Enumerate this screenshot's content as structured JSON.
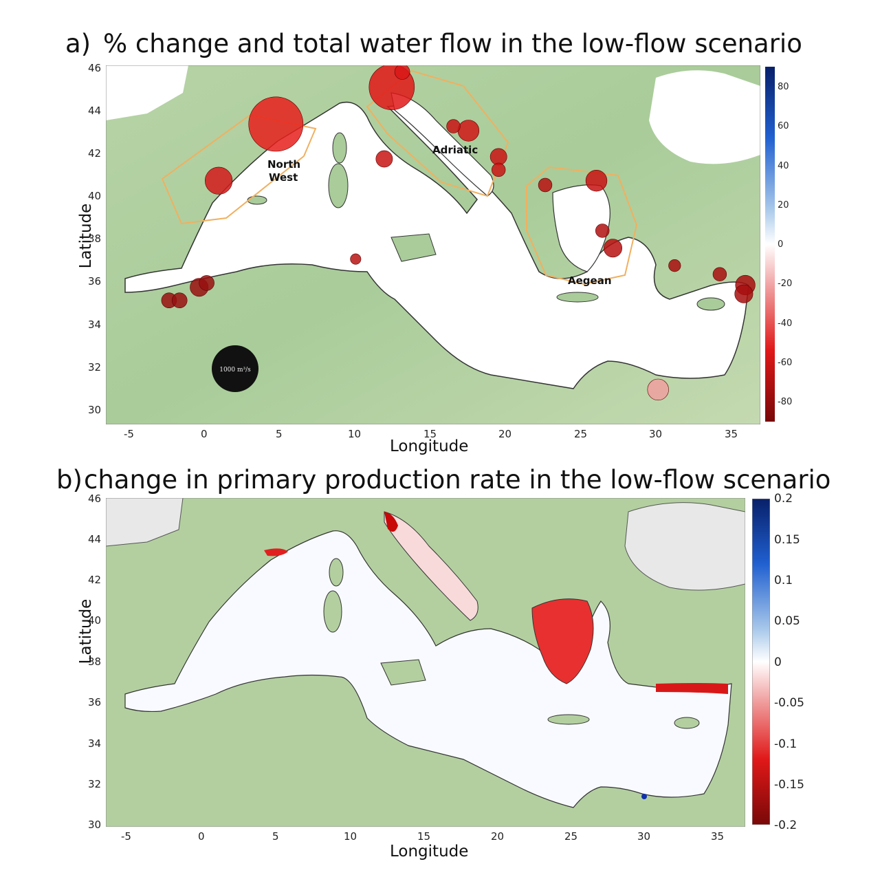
{
  "panel_a": {
    "letter": "a)",
    "title": "% change and total water flow in the low-flow scenario",
    "xlabel": "Longitude",
    "ylabel": "Latitude",
    "xticks": [
      "-5",
      "0",
      "5",
      "10",
      "15",
      "20",
      "25",
      "30",
      "35"
    ],
    "yticks": [
      "46",
      "44",
      "42",
      "40",
      "38",
      "36",
      "34",
      "32",
      "30"
    ],
    "colorbar_ticks": [
      "80",
      "60",
      "40",
      "20",
      "0",
      "-20",
      "-40",
      "-60",
      "-80"
    ],
    "regions": {
      "north_west_line1": "North",
      "north_west_line2": "West",
      "adriatic": "Adriatic",
      "aegean": "Aegean"
    },
    "legend_circle_label": "1000 m³/s"
  },
  "panel_b": {
    "letter": "b)",
    "title": "change in primary production rate in the low-flow scenario",
    "xlabel": "Longitude",
    "ylabel": "Latitude",
    "xticks": [
      "-5",
      "0",
      "5",
      "10",
      "15",
      "20",
      "25",
      "30",
      "35"
    ],
    "yticks": [
      "46",
      "44",
      "42",
      "40",
      "38",
      "36",
      "34",
      "32",
      "30"
    ],
    "colorbar_ticks": [
      "0.2",
      "0.15",
      "0.1",
      "0.05",
      "0",
      "-0.05",
      "-0.1",
      "-0.15",
      "-0.2"
    ]
  },
  "chart_data": [
    {
      "type": "scatter",
      "title": "% change and total water flow in the low-flow scenario",
      "xlabel": "Longitude",
      "ylabel": "Latitude",
      "xlim": [
        -6.5,
        37
      ],
      "ylim": [
        29.5,
        46
      ],
      "colorbar_range": [
        -90,
        90
      ],
      "colormap": "red-white-blue",
      "river_mouths": [
        {
          "lon": 4.8,
          "lat": 43.3,
          "size": 3.6,
          "color": "#e8201c"
        },
        {
          "lon": 12.5,
          "lat": 45.0,
          "size": 3.0,
          "color": "#e01818"
        },
        {
          "lon": 1.0,
          "lat": 40.7,
          "size": 1.8,
          "color": "#d41a1a"
        },
        {
          "lon": 13.2,
          "lat": 45.7,
          "size": 1.0,
          "color": "#d81818"
        },
        {
          "lon": 17.6,
          "lat": 43.0,
          "size": 1.4,
          "color": "#d01616"
        },
        {
          "lon": 19.6,
          "lat": 41.8,
          "size": 1.1,
          "color": "#c81414"
        },
        {
          "lon": 19.6,
          "lat": 41.2,
          "size": 0.9,
          "color": "#c81414"
        },
        {
          "lon": 16.6,
          "lat": 43.2,
          "size": 0.9,
          "color": "#c81414"
        },
        {
          "lon": 12.0,
          "lat": 41.7,
          "size": 1.1,
          "color": "#c81414"
        },
        {
          "lon": 26.1,
          "lat": 40.7,
          "size": 1.4,
          "color": "#c81212"
        },
        {
          "lon": 22.7,
          "lat": 40.5,
          "size": 0.9,
          "color": "#b81010"
        },
        {
          "lon": 26.5,
          "lat": 38.4,
          "size": 0.9,
          "color": "#b01010"
        },
        {
          "lon": 27.2,
          "lat": 37.6,
          "size": 1.2,
          "color": "#b81010"
        },
        {
          "lon": 36.0,
          "lat": 35.9,
          "size": 1.3,
          "color": "#a80e0e"
        },
        {
          "lon": 35.9,
          "lat": 35.5,
          "size": 1.2,
          "color": "#a80e0e"
        },
        {
          "lon": 34.3,
          "lat": 36.4,
          "size": 0.9,
          "color": "#a80e0e"
        },
        {
          "lon": -2.3,
          "lat": 35.2,
          "size": 1.0,
          "color": "#981010"
        },
        {
          "lon": -1.6,
          "lat": 35.2,
          "size": 1.0,
          "color": "#981010"
        },
        {
          "lon": -0.3,
          "lat": 35.8,
          "size": 1.2,
          "color": "#981010"
        },
        {
          "lon": 0.2,
          "lat": 36.0,
          "size": 1.0,
          "color": "#981010"
        },
        {
          "lon": 10.1,
          "lat": 37.1,
          "size": 0.7,
          "color": "#b81414"
        },
        {
          "lon": 30.2,
          "lat": 31.1,
          "size": 1.4,
          "color": "#f0a0a0"
        },
        {
          "lon": 31.3,
          "lat": 36.8,
          "size": 0.8,
          "color": "#a80e0e"
        }
      ],
      "legend_circle": "1000 m³/s"
    },
    {
      "type": "heatmap",
      "title": "change in primary production rate in the low-flow scenario",
      "xlabel": "Longitude",
      "ylabel": "Latitude",
      "xlim": [
        -6.5,
        37
      ],
      "ylim": [
        29.5,
        46
      ],
      "colorbar_range": [
        -0.2,
        0.2
      ],
      "colormap": "red-white-blue",
      "notable_regions": [
        {
          "name": "northern Adriatic",
          "value": -0.18
        },
        {
          "name": "central Adriatic coast",
          "value": -0.08
        },
        {
          "name": "northern Aegean",
          "value": -0.15
        },
        {
          "name": "Gulf of Lion",
          "value": -0.1
        },
        {
          "name": "Levantine north coast",
          "value": -0.12
        },
        {
          "name": "Nile delta",
          "value": 0.15
        },
        {
          "name": "Alboran Sea",
          "value": 0.03
        }
      ]
    }
  ]
}
